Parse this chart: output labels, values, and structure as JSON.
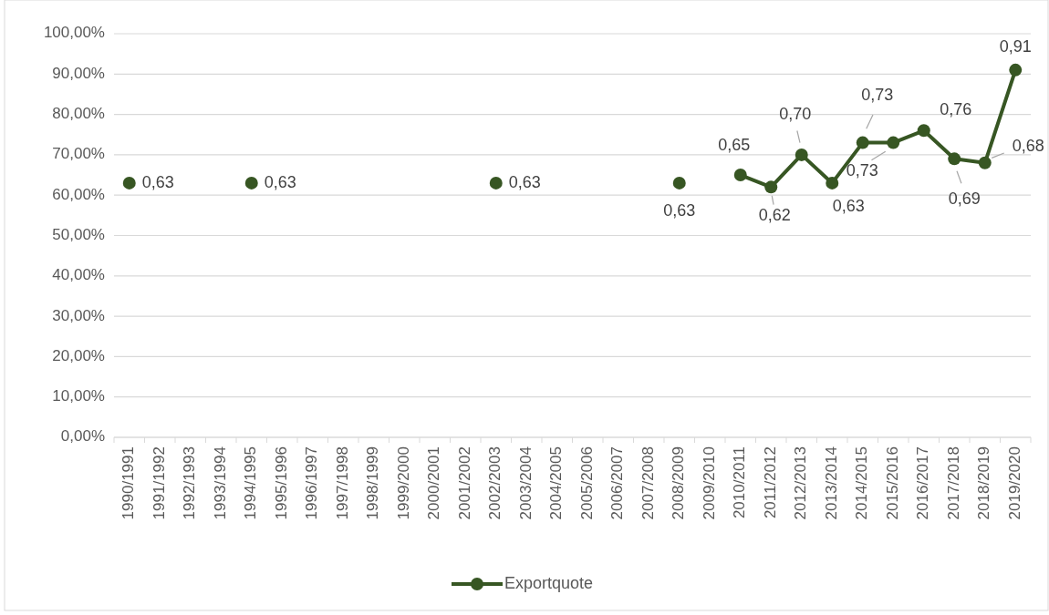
{
  "chart_data": {
    "type": "line",
    "categories": [
      "1990/1991",
      "1991/1992",
      "1992/1993",
      "1993/1994",
      "1994/1995",
      "1995/1996",
      "1996/1997",
      "1997/1998",
      "1998/1999",
      "1999/2000",
      "2000/2001",
      "2001/2002",
      "2002/2003",
      "2003/2004",
      "2004/2005",
      "2005/2006",
      "2006/2007",
      "2007/2008",
      "2008/2009",
      "2009/2010",
      "2010/2011",
      "2011/2012",
      "2012/2013",
      "2013/2014",
      "2014/2015",
      "2015/2016",
      "2016/2017",
      "2017/2018",
      "2018/2019",
      "2019/2020"
    ],
    "series": [
      {
        "name": "Exportquote",
        "color": "#375623",
        "values": [
          0.63,
          null,
          null,
          null,
          0.63,
          null,
          null,
          null,
          null,
          null,
          null,
          null,
          0.63,
          null,
          null,
          null,
          null,
          null,
          0.63,
          null,
          0.65,
          0.62,
          0.7,
          0.63,
          0.73,
          0.73,
          0.76,
          0.69,
          0.68,
          0.91
        ],
        "value_labels": [
          "0,63",
          null,
          null,
          null,
          "0,63",
          null,
          null,
          null,
          null,
          null,
          null,
          null,
          "0,63",
          null,
          null,
          null,
          null,
          null,
          "0,63",
          null,
          "0,65",
          "0,62",
          "0,70",
          "0,63",
          "0,73",
          "0,73",
          "0,76",
          "0,69",
          "0,68",
          "0,91"
        ]
      }
    ],
    "ylim": [
      0,
      1
    ],
    "yticks": [
      {
        "value": 0,
        "label": "0,00%"
      },
      {
        "value": 0.1,
        "label": "10,00%"
      },
      {
        "value": 0.2,
        "label": "20,00%"
      },
      {
        "value": 0.3,
        "label": "30,00%"
      },
      {
        "value": 0.4,
        "label": "40,00%"
      },
      {
        "value": 0.5,
        "label": "50,00%"
      },
      {
        "value": 0.6,
        "label": "60,00%"
      },
      {
        "value": 0.7,
        "label": "70,00%"
      },
      {
        "value": 0.8,
        "label": "80,00%"
      },
      {
        "value": 0.9,
        "label": "90,00%"
      },
      {
        "value": 1,
        "label": "100,00%"
      }
    ],
    "grid": "y",
    "legend": "bottom",
    "marker": "circle",
    "line_style": "solid"
  }
}
